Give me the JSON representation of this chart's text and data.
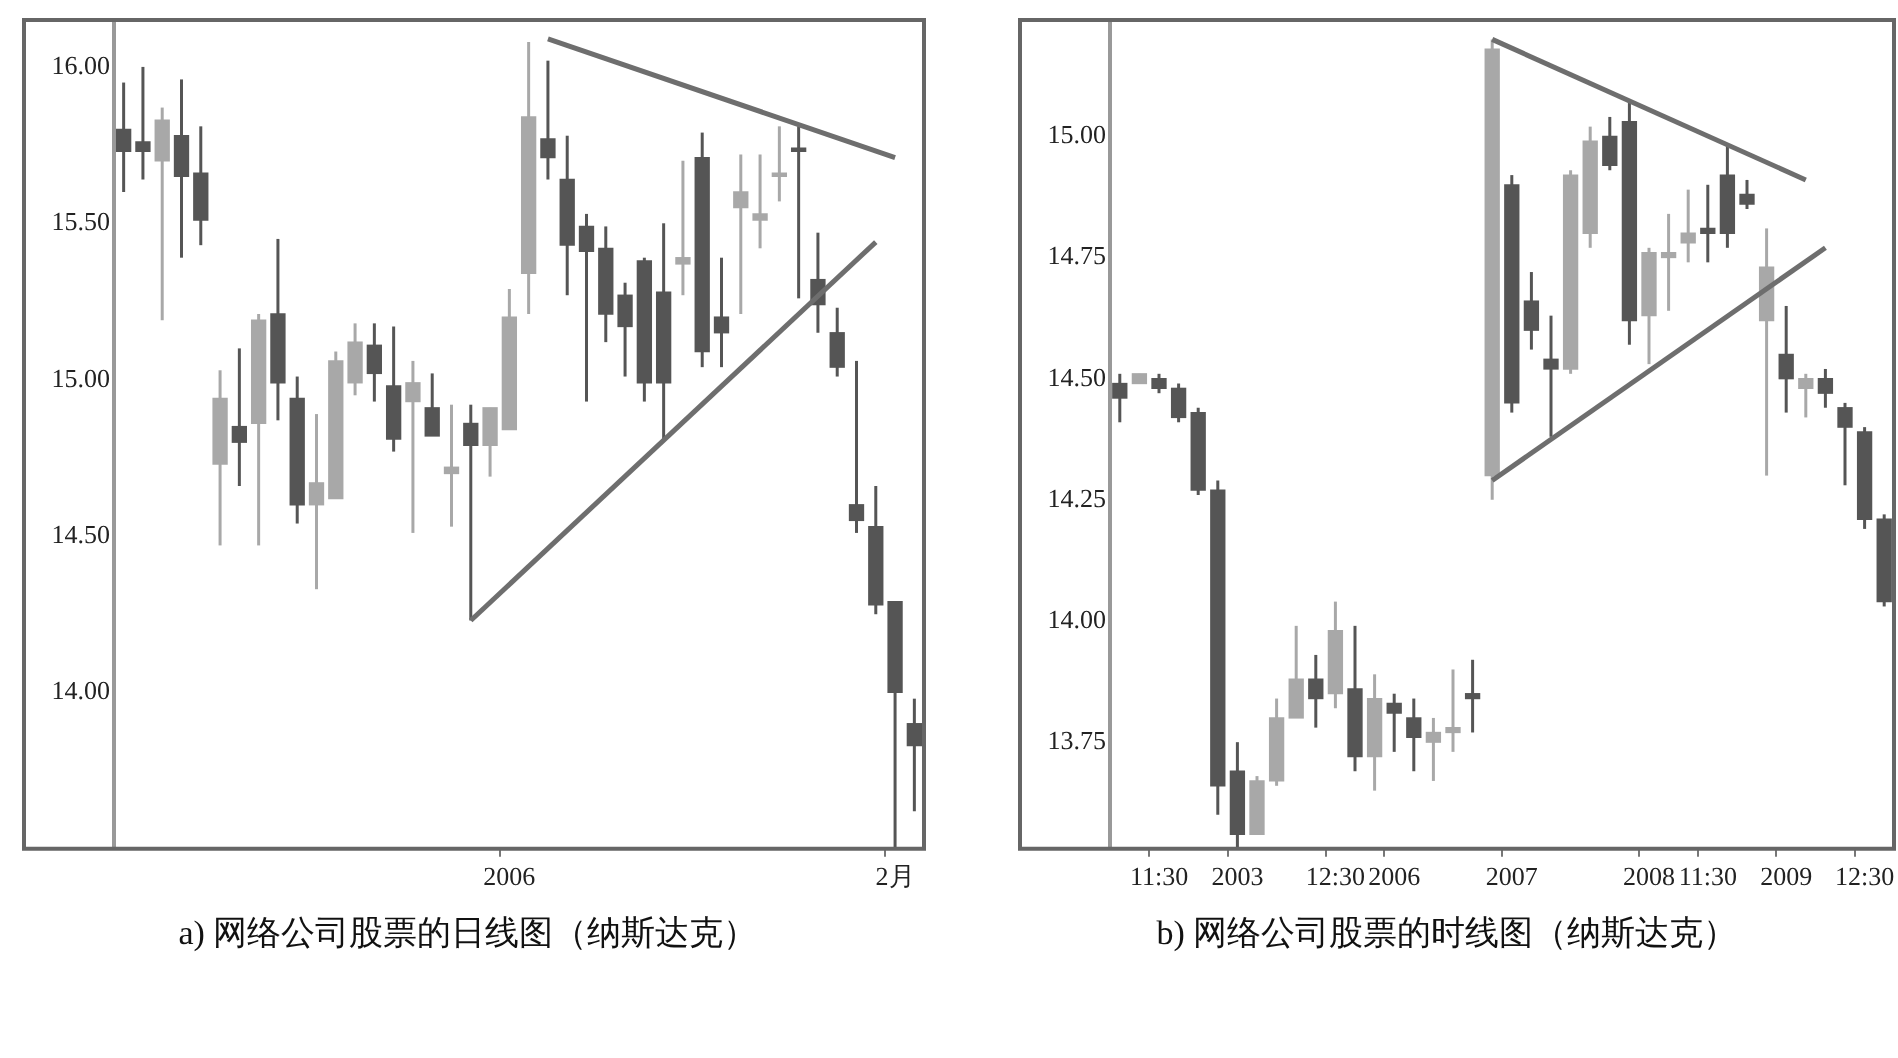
{
  "chart_data": [
    {
      "type": "candlestick",
      "legend": false,
      "colors": [
        "#555555",
        "#555555",
        "#a8a8a8",
        "#555555",
        "#555555",
        "#a8a8a8",
        "#555555",
        "#a8a8a8",
        "#555555",
        "#555555",
        "#a8a8a8",
        "#a8a8a8",
        "#a8a8a8",
        "#555555",
        "#555555",
        "#a8a8a8",
        "#555555",
        "#a8a8a8",
        "#555555",
        "#a8a8a8",
        "#a8a8a8",
        "#a8a8a8",
        "#555555",
        "#555555",
        "#555555",
        "#555555",
        "#555555",
        "#555555",
        "#555555",
        "#a8a8a8",
        "#555555",
        "#555555",
        "#a8a8a8",
        "#a8a8a8",
        "#a8a8a8",
        "#555555",
        "#555555",
        "#555555",
        "#555555",
        "#555555",
        "#555555",
        "#555555"
      ],
      "categories": [
        null,
        null,
        null,
        null,
        null,
        null,
        null,
        null,
        null,
        null,
        null,
        null,
        null,
        null,
        null,
        null,
        null,
        null,
        null,
        null,
        "2006",
        null,
        null,
        null,
        null,
        null,
        null,
        null,
        null,
        null,
        null,
        null,
        null,
        null,
        null,
        null,
        null,
        null,
        null,
        null,
        "2月",
        null
      ],
      "ohlc": [
        [
          15.8,
          15.95,
          15.6,
          15.73
        ],
        [
          15.76,
          16.0,
          15.64,
          15.73
        ],
        [
          15.7,
          15.87,
          15.19,
          15.83
        ],
        [
          15.78,
          15.96,
          15.39,
          15.65
        ],
        [
          15.66,
          15.81,
          15.43,
          15.51
        ],
        [
          14.73,
          15.03,
          14.47,
          14.94
        ],
        [
          14.85,
          15.1,
          14.66,
          14.8
        ],
        [
          14.86,
          15.21,
          14.47,
          15.19
        ],
        [
          15.21,
          15.45,
          14.87,
          14.99
        ],
        [
          14.94,
          15.01,
          14.54,
          14.6
        ],
        [
          14.6,
          14.89,
          14.33,
          14.67
        ],
        [
          14.62,
          15.09,
          14.62,
          15.06
        ],
        [
          14.99,
          15.18,
          14.95,
          15.12
        ],
        [
          15.11,
          15.18,
          14.93,
          15.02
        ],
        [
          14.98,
          15.17,
          14.77,
          14.81
        ],
        [
          14.93,
          15.06,
          14.51,
          14.99
        ],
        [
          14.91,
          15.02,
          14.82,
          14.82
        ],
        [
          14.7,
          14.92,
          14.53,
          14.72
        ],
        [
          14.86,
          14.92,
          14.23,
          14.79
        ],
        [
          14.79,
          14.91,
          14.69,
          14.91
        ],
        [
          14.84,
          15.29,
          14.84,
          15.2
        ],
        [
          15.34,
          16.08,
          15.21,
          15.84
        ],
        [
          15.77,
          16.02,
          15.64,
          15.71
        ],
        [
          15.64,
          15.78,
          15.27,
          15.43
        ],
        [
          15.49,
          15.53,
          14.93,
          15.41
        ],
        [
          15.42,
          15.49,
          15.12,
          15.21
        ],
        [
          15.27,
          15.31,
          15.01,
          15.17
        ],
        [
          15.38,
          15.39,
          14.93,
          14.99
        ],
        [
          15.28,
          15.5,
          14.81,
          14.99
        ],
        [
          15.37,
          15.7,
          15.27,
          15.39
        ],
        [
          15.71,
          15.79,
          15.04,
          15.09
        ],
        [
          15.2,
          15.39,
          15.04,
          15.15
        ],
        [
          15.55,
          15.72,
          15.21,
          15.6
        ],
        [
          15.51,
          15.72,
          15.42,
          15.53
        ],
        [
          15.65,
          15.81,
          15.57,
          15.66
        ],
        [
          15.74,
          15.81,
          15.26,
          15.73
        ],
        [
          15.32,
          15.47,
          15.15,
          15.24
        ],
        [
          15.15,
          15.23,
          15.01,
          15.04
        ],
        [
          14.6,
          15.06,
          14.51,
          14.55
        ],
        [
          14.53,
          14.66,
          14.25,
          14.28
        ],
        [
          14.29,
          14.29,
          13.5,
          14.0
        ],
        [
          13.9,
          13.98,
          13.62,
          13.83
        ]
      ],
      "series": [
        {
          "type": "line",
          "color": "#6e6e6e",
          "values": [
            null,
            null,
            null,
            null,
            null,
            null,
            null,
            null,
            null,
            null,
            null,
            null,
            null,
            null,
            null,
            null,
            null,
            null,
            null,
            null,
            null,
            null,
            16.09,
            null,
            null,
            null,
            null,
            null,
            null,
            null,
            null,
            null,
            null,
            null,
            null,
            null,
            null,
            null,
            null,
            null,
            15.71,
            null
          ]
        },
        {
          "type": "line",
          "color": "#6e6e6e",
          "values": [
            null,
            null,
            null,
            null,
            null,
            null,
            null,
            null,
            null,
            null,
            null,
            null,
            null,
            null,
            null,
            null,
            null,
            null,
            14.23,
            null,
            null,
            null,
            null,
            null,
            null,
            null,
            null,
            null,
            null,
            null,
            null,
            null,
            null,
            null,
            null,
            null,
            null,
            null,
            null,
            15.44,
            null,
            null
          ]
        }
      ],
      "ylim": [
        13.5,
        16.15
      ],
      "yticks": [
        {
          "value": 14,
          "label": "14.00"
        },
        {
          "value": 14.5,
          "label": "14.50"
        },
        {
          "value": 15,
          "label": "15.00"
        },
        {
          "value": 15.5,
          "label": "15.50"
        },
        {
          "value": 16,
          "label": "16.00"
        }
      ],
      "annotations": [
        "a) 网络公司股票的日线图（纳斯达克）"
      ]
    },
    {
      "type": "candlestick",
      "legend": false,
      "colors": [
        "#555555",
        "#a8a8a8",
        "#555555",
        "#555555",
        "#555555",
        "#555555",
        "#555555",
        "#a8a8a8",
        "#a8a8a8",
        "#a8a8a8",
        "#555555",
        "#a8a8a8",
        "#555555",
        "#a8a8a8",
        "#555555",
        "#555555",
        "#a8a8a8",
        "#a8a8a8",
        "#555555",
        "#a8a8a8",
        "#555555",
        "#555555",
        "#555555",
        "#a8a8a8",
        "#a8a8a8",
        "#555555",
        "#555555",
        "#a8a8a8",
        "#a8a8a8",
        "#a8a8a8",
        "#555555",
        "#555555",
        "#555555",
        "#a8a8a8",
        "#555555",
        "#a8a8a8",
        "#555555",
        "#555555",
        "#555555",
        "#555555"
      ],
      "categories": [
        null,
        null,
        "11:30",
        null,
        null,
        null,
        "2003",
        null,
        null,
        null,
        null,
        "12:30",
        null,
        null,
        "2006",
        null,
        null,
        null,
        null,
        null,
        "2007",
        null,
        null,
        null,
        null,
        null,
        null,
        "2008",
        null,
        null,
        "11:30",
        null,
        null,
        null,
        "2009",
        null,
        null,
        null,
        "12:30",
        null
      ],
      "ohlc": [
        [
          14.49,
          14.51,
          14.41,
          14.46
        ],
        [
          14.49,
          14.51,
          14.49,
          14.51
        ],
        [
          14.5,
          14.51,
          14.47,
          14.48
        ],
        [
          14.48,
          14.49,
          14.41,
          14.42
        ],
        [
          14.43,
          14.44,
          14.26,
          14.27
        ],
        [
          14.27,
          14.29,
          13.6,
          13.66
        ],
        [
          13.69,
          13.75,
          13.53,
          13.56
        ],
        [
          13.56,
          13.68,
          13.56,
          13.67
        ],
        [
          13.67,
          13.84,
          13.66,
          13.8
        ],
        [
          13.8,
          13.99,
          13.8,
          13.88
        ],
        [
          13.88,
          13.93,
          13.78,
          13.84
        ],
        [
          13.85,
          14.04,
          13.82,
          13.98
        ],
        [
          13.86,
          13.99,
          13.69,
          13.72
        ],
        [
          13.72,
          13.89,
          13.65,
          13.84
        ],
        [
          13.83,
          13.85,
          13.73,
          13.81
        ],
        [
          13.8,
          13.84,
          13.69,
          13.76
        ],
        [
          13.75,
          13.8,
          13.67,
          13.77
        ],
        [
          13.77,
          13.9,
          13.73,
          13.78
        ],
        [
          13.85,
          13.92,
          13.77,
          13.84
        ],
        [
          14.3,
          15.2,
          14.25,
          15.18
        ],
        [
          14.9,
          14.92,
          14.43,
          14.45
        ],
        [
          14.66,
          14.72,
          14.56,
          14.6
        ],
        [
          14.54,
          14.63,
          14.38,
          14.52
        ],
        [
          14.52,
          14.93,
          14.51,
          14.92
        ],
        [
          14.8,
          15.02,
          14.77,
          14.99
        ],
        [
          15.0,
          15.04,
          14.93,
          14.94
        ],
        [
          15.03,
          15.07,
          14.57,
          14.62
        ],
        [
          14.63,
          14.77,
          14.53,
          14.76
        ],
        [
          14.75,
          14.84,
          14.64,
          14.76
        ],
        [
          14.78,
          14.89,
          14.74,
          14.8
        ],
        [
          14.81,
          14.9,
          14.74,
          14.8
        ],
        [
          14.92,
          14.98,
          14.77,
          14.8
        ],
        [
          14.88,
          14.91,
          14.85,
          14.86
        ],
        [
          14.62,
          14.81,
          14.3,
          14.73
        ],
        [
          14.55,
          14.65,
          14.43,
          14.5
        ],
        [
          14.48,
          14.51,
          14.42,
          14.5
        ],
        [
          14.5,
          14.52,
          14.44,
          14.47
        ],
        [
          14.44,
          14.45,
          14.28,
          14.4
        ],
        [
          14.39,
          14.4,
          14.19,
          14.21
        ],
        [
          14.21,
          14.22,
          14.03,
          14.04
        ]
      ],
      "series": [
        {
          "type": "line",
          "color": "#6e6e6e",
          "values": [
            null,
            null,
            null,
            null,
            null,
            null,
            null,
            null,
            null,
            null,
            null,
            null,
            null,
            null,
            null,
            null,
            null,
            null,
            null,
            15.2,
            null,
            null,
            null,
            null,
            null,
            null,
            null,
            null,
            null,
            null,
            null,
            null,
            null,
            null,
            null,
            14.91,
            null,
            null,
            null,
            null
          ]
        },
        {
          "type": "line",
          "color": "#6e6e6e",
          "values": [
            null,
            null,
            null,
            null,
            null,
            null,
            null,
            null,
            null,
            null,
            null,
            null,
            null,
            null,
            null,
            null,
            null,
            null,
            null,
            14.29,
            null,
            null,
            null,
            null,
            null,
            null,
            null,
            null,
            null,
            null,
            null,
            null,
            null,
            null,
            null,
            null,
            14.77,
            null,
            null,
            null
          ]
        }
      ],
      "ylim": [
        13.53,
        15.24
      ],
      "yticks": [
        {
          "value": 13.75,
          "label": "13.75"
        },
        {
          "value": 14,
          "label": "14.00"
        },
        {
          "value": 14.25,
          "label": "14.25"
        },
        {
          "value": 14.5,
          "label": "14.50"
        },
        {
          "value": 14.75,
          "label": "14.75"
        },
        {
          "value": 15,
          "label": "15.00"
        }
      ],
      "annotations": [
        "b) 网络公司股票的时线图（纳斯达克）"
      ]
    }
  ]
}
